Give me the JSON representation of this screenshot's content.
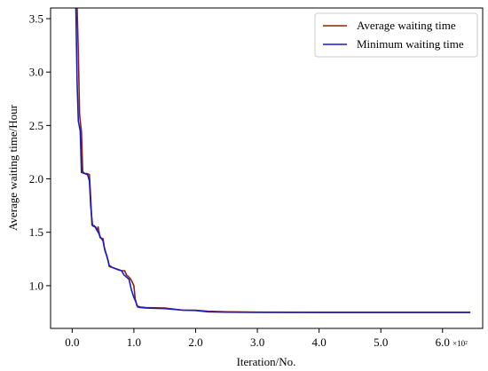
{
  "chart_data": {
    "type": "line",
    "xlabel": "Iteration/No.",
    "ylabel": "Average waiting time/Hour",
    "x_multiplier_label": "×10²",
    "xlim": [
      -0.35,
      6.65
    ],
    "ylim": [
      0.6,
      3.6
    ],
    "x_ticks": [
      0.0,
      1.0,
      2.0,
      3.0,
      4.0,
      5.0,
      6.0
    ],
    "x_tick_labels": [
      "0.0",
      "1.0",
      "2.0",
      "3.0",
      "4.0",
      "5.0",
      "6.0"
    ],
    "y_ticks": [
      1.0,
      1.5,
      2.0,
      2.5,
      3.0,
      3.5
    ],
    "y_tick_labels": [
      "1.0",
      "1.5",
      "2.0",
      "2.5",
      "3.0",
      "3.5"
    ],
    "grid": false,
    "legend_position": "top-right",
    "series": [
      {
        "name": "Average waiting time",
        "color": "#8b2500",
        "points": [
          [
            0.08,
            3.6
          ],
          [
            0.1,
            3.18
          ],
          [
            0.12,
            2.6
          ],
          [
            0.15,
            2.44
          ],
          [
            0.17,
            2.07
          ],
          [
            0.2,
            2.05
          ],
          [
            0.24,
            2.05
          ],
          [
            0.28,
            2.04
          ],
          [
            0.3,
            1.82
          ],
          [
            0.32,
            1.57
          ],
          [
            0.36,
            1.56
          ],
          [
            0.4,
            1.52
          ],
          [
            0.42,
            1.55
          ],
          [
            0.45,
            1.45
          ],
          [
            0.5,
            1.44
          ],
          [
            0.52,
            1.36
          ],
          [
            0.55,
            1.3
          ],
          [
            0.58,
            1.24
          ],
          [
            0.6,
            1.18
          ],
          [
            0.65,
            1.17
          ],
          [
            0.7,
            1.16
          ],
          [
            0.75,
            1.15
          ],
          [
            0.8,
            1.14
          ],
          [
            0.85,
            1.14
          ],
          [
            0.88,
            1.1
          ],
          [
            0.92,
            1.08
          ],
          [
            0.96,
            1.05
          ],
          [
            1.0,
            1.0
          ],
          [
            1.02,
            0.88
          ],
          [
            1.05,
            0.81
          ],
          [
            1.1,
            0.8
          ],
          [
            1.2,
            0.795
          ],
          [
            1.5,
            0.79
          ],
          [
            1.8,
            0.77
          ],
          [
            2.0,
            0.77
          ],
          [
            2.2,
            0.76
          ],
          [
            2.5,
            0.755
          ],
          [
            3.0,
            0.752
          ],
          [
            4.0,
            0.75
          ],
          [
            5.0,
            0.75
          ],
          [
            6.0,
            0.75
          ],
          [
            6.45,
            0.75
          ]
        ]
      },
      {
        "name": "Minimum waiting time",
        "color": "#1a1acc",
        "points": [
          [
            0.06,
            3.6
          ],
          [
            0.08,
            2.9
          ],
          [
            0.1,
            2.54
          ],
          [
            0.13,
            2.45
          ],
          [
            0.15,
            2.06
          ],
          [
            0.2,
            2.05
          ],
          [
            0.25,
            2.04
          ],
          [
            0.28,
            1.98
          ],
          [
            0.3,
            1.75
          ],
          [
            0.33,
            1.56
          ],
          [
            0.38,
            1.55
          ],
          [
            0.4,
            1.52
          ],
          [
            0.43,
            1.49
          ],
          [
            0.46,
            1.45
          ],
          [
            0.5,
            1.42
          ],
          [
            0.53,
            1.33
          ],
          [
            0.56,
            1.28
          ],
          [
            0.6,
            1.19
          ],
          [
            0.65,
            1.17
          ],
          [
            0.7,
            1.16
          ],
          [
            0.74,
            1.15
          ],
          [
            0.8,
            1.14
          ],
          [
            0.84,
            1.1
          ],
          [
            0.88,
            1.08
          ],
          [
            0.92,
            1.06
          ],
          [
            0.96,
            0.96
          ],
          [
            1.0,
            0.89
          ],
          [
            1.03,
            0.85
          ],
          [
            1.06,
            0.8
          ],
          [
            1.1,
            0.795
          ],
          [
            1.2,
            0.79
          ],
          [
            1.5,
            0.785
          ],
          [
            1.8,
            0.77
          ],
          [
            2.0,
            0.768
          ],
          [
            2.2,
            0.755
          ],
          [
            2.5,
            0.752
          ],
          [
            3.0,
            0.75
          ],
          [
            4.0,
            0.75
          ],
          [
            5.0,
            0.75
          ],
          [
            6.0,
            0.75
          ],
          [
            6.45,
            0.75
          ]
        ]
      }
    ]
  }
}
